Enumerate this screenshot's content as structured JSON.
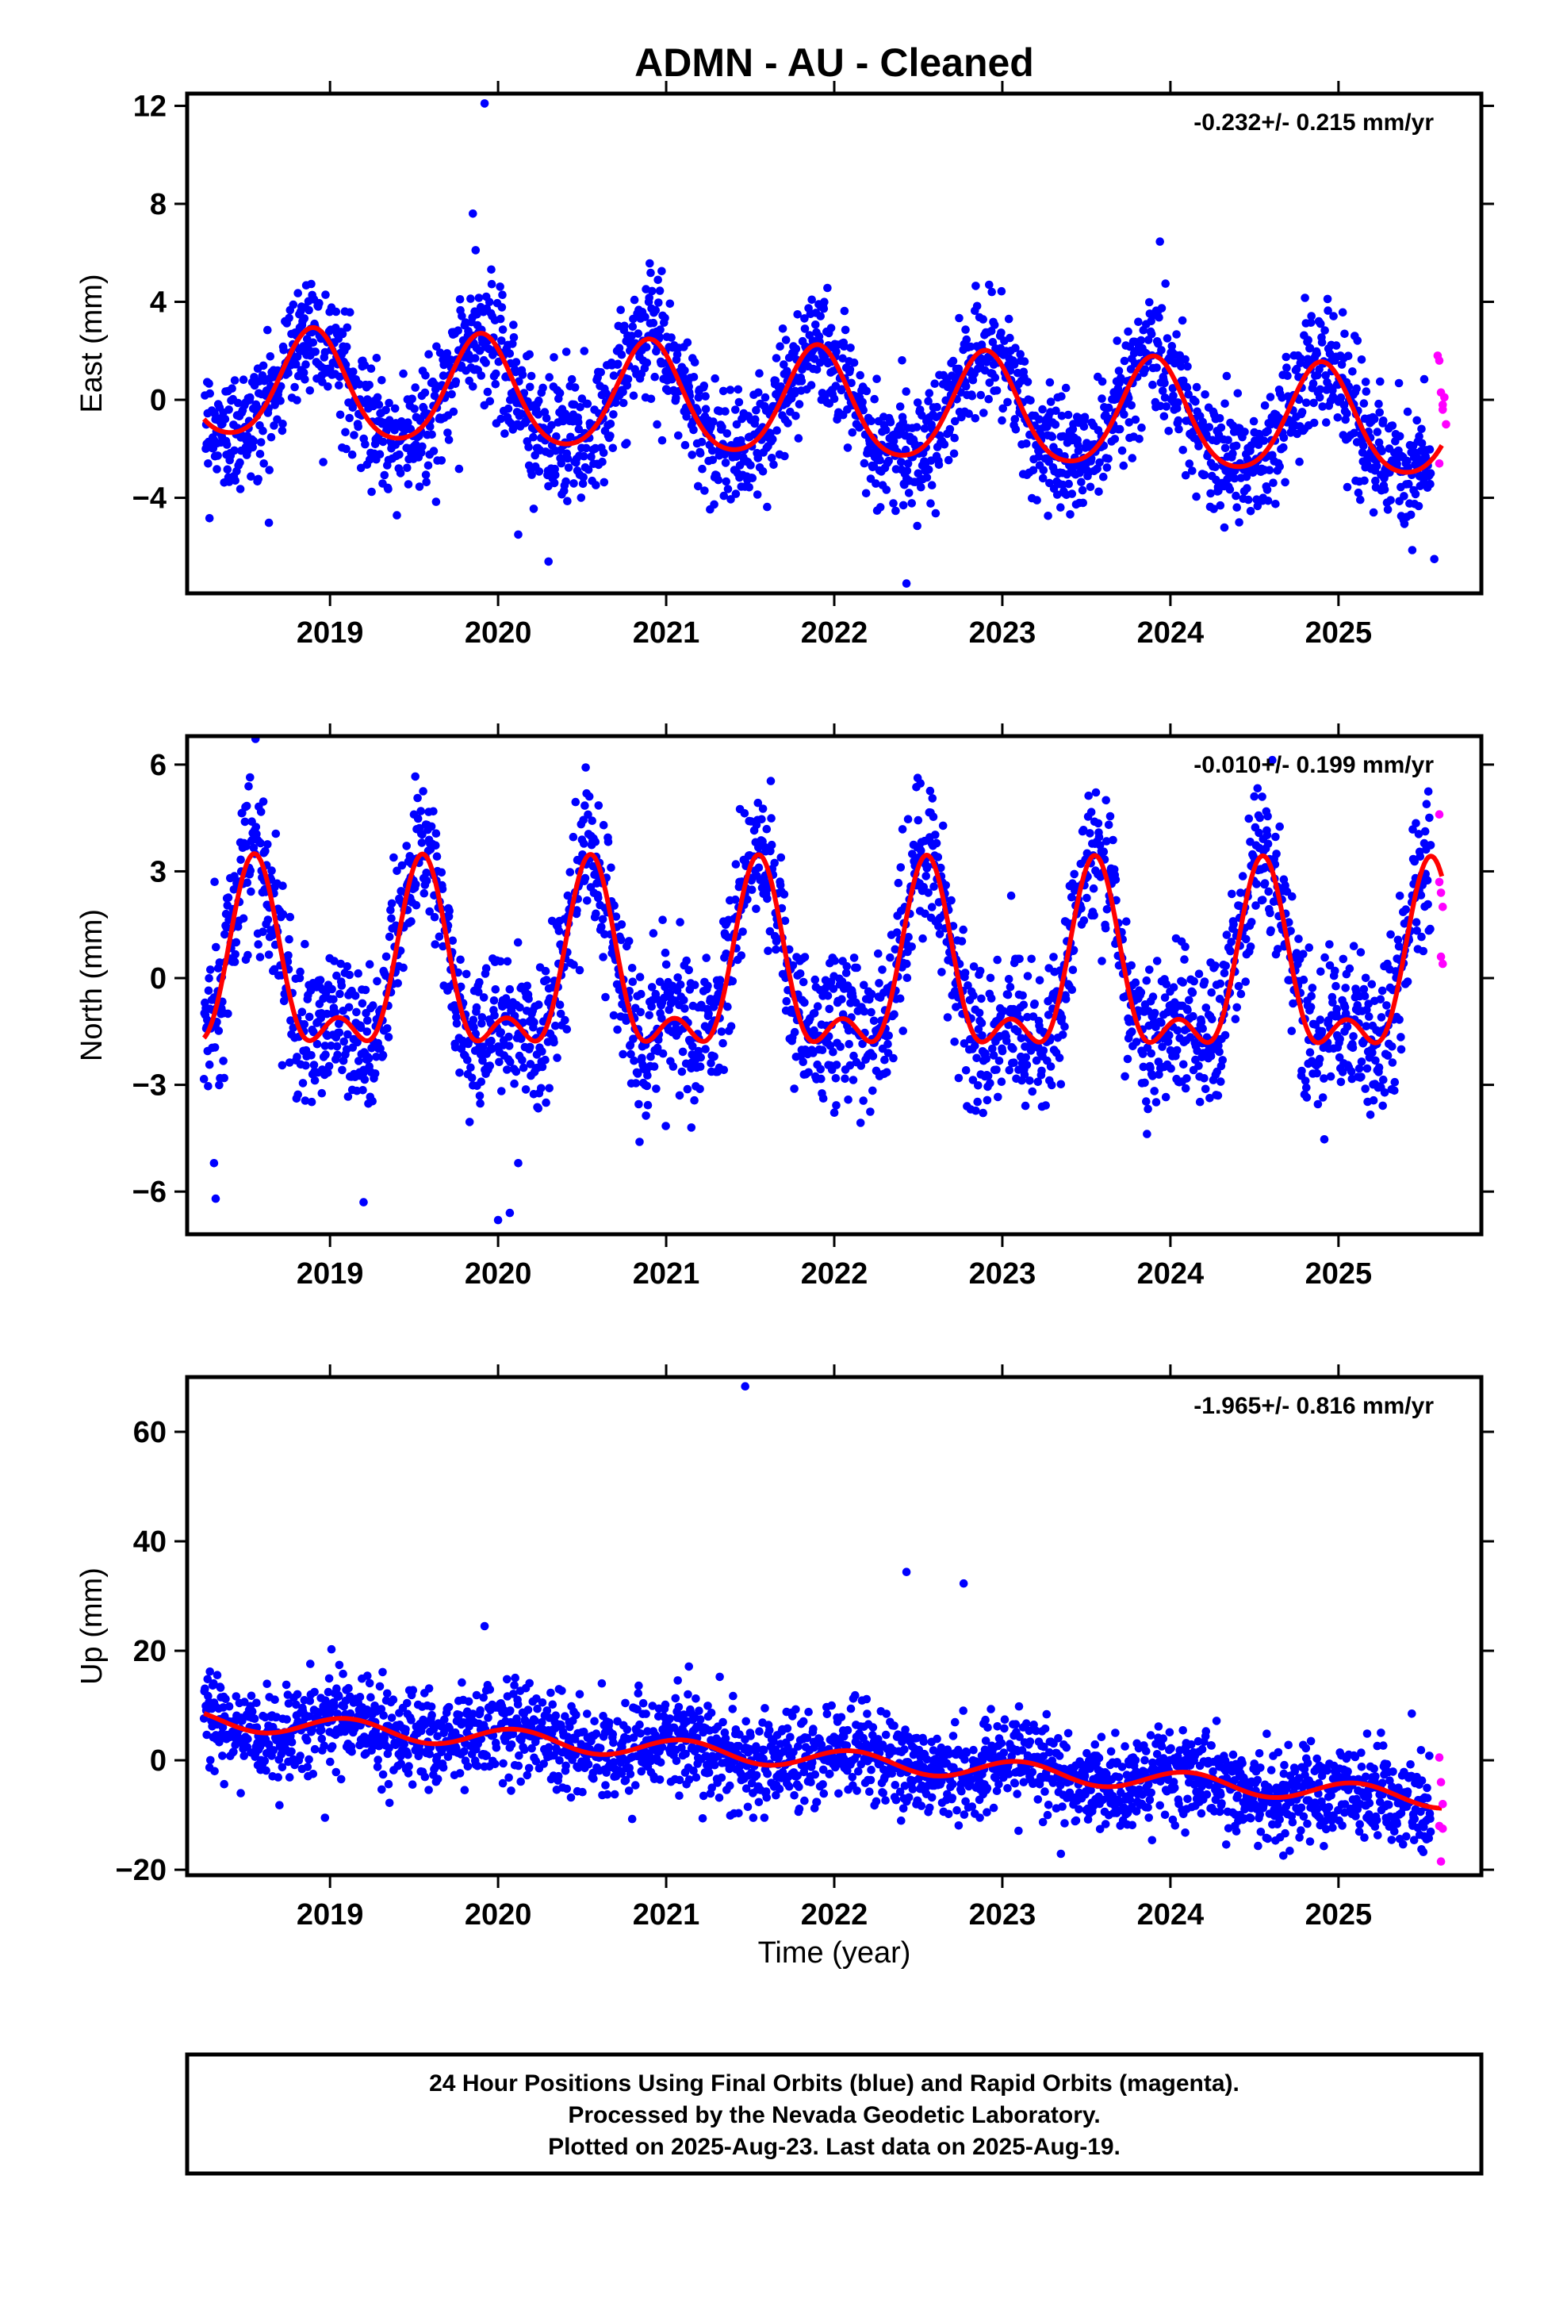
{
  "title": "ADMN  - AU - Cleaned",
  "colors": {
    "final_orbits": "#0000ff",
    "rapid_orbits": "#ff00ff",
    "model_fit": "#ff0000",
    "frame": "#000000"
  },
  "x_axis": {
    "label": "Time (year)",
    "range": [
      2018.15,
      2025.85
    ],
    "ticks": [
      2019,
      2020,
      2021,
      2022,
      2023,
      2024,
      2025
    ],
    "tick_labels": [
      "2019",
      "2020",
      "2021",
      "2022",
      "2023",
      "2024",
      "2025"
    ]
  },
  "chart_data": [
    {
      "type": "scatter",
      "id": "east",
      "ylabel": "East (mm)",
      "ylim": [
        -7.9,
        12.5
      ],
      "yticks": [
        -4,
        0,
        4,
        8,
        12
      ],
      "ytick_labels": [
        "−4",
        "0",
        "4",
        "8",
        "12"
      ],
      "rate": "-0.232+/- 0.215 mm/yr",
      "series": [
        {
          "kind": "final_orbits",
          "x_range": [
            2018.25,
            2025.55
          ],
          "seasonal": {
            "offset": 0.6,
            "trend": -0.232,
            "amp": 2.2,
            "peak": 0.9,
            "amp2": 0.3,
            "noise": 1.25
          }
        },
        {
          "kind": "rapid_orbits",
          "points": [
            [
              2025.59,
              1.8
            ],
            [
              2025.6,
              1.6
            ],
            [
              2025.61,
              0.3
            ],
            [
              2025.62,
              -0.2
            ],
            [
              2025.63,
              0.1
            ],
            [
              2025.64,
              -1.0
            ],
            [
              2025.6,
              -2.6
            ],
            [
              2025.62,
              -0.4
            ]
          ]
        },
        {
          "kind": "model_fit",
          "x_range": [
            2018.25,
            2025.62
          ]
        }
      ],
      "outliers": [
        [
          2019.92,
          12.1
        ],
        [
          2019.85,
          7.6
        ],
        [
          2020.12,
          -5.5
        ],
        [
          2020.3,
          -6.6
        ],
        [
          2022.43,
          -7.5
        ],
        [
          2025.57,
          -6.5
        ]
      ]
    },
    {
      "type": "scatter",
      "id": "north",
      "ylabel": "North (mm)",
      "ylim": [
        -7.2,
        6.8
      ],
      "yticks": [
        -6,
        -3,
        0,
        3,
        6
      ],
      "ytick_labels": [
        "−6",
        "−3",
        "0",
        "3",
        "6"
      ],
      "rate": "-0.010+/- 0.199 mm/yr",
      "series": [
        {
          "kind": "final_orbits",
          "x_range": [
            2018.25,
            2025.55
          ],
          "seasonal": {
            "offset": 0.0,
            "trend": -0.01,
            "amp": 2.3,
            "peak": 0.55,
            "amp2": 1.2,
            "noise": 1.05
          }
        },
        {
          "kind": "rapid_orbits",
          "points": [
            [
              2025.6,
              4.6
            ],
            [
              2025.61,
              2.4
            ],
            [
              2025.62,
              2.0
            ],
            [
              2025.61,
              0.6
            ],
            [
              2025.62,
              0.4
            ],
            [
              2025.6,
              2.7
            ]
          ]
        },
        {
          "kind": "model_fit",
          "x_range": [
            2018.25,
            2025.62
          ]
        }
      ],
      "outliers": [
        [
          2018.32,
          -6.2
        ],
        [
          2018.31,
          -5.2
        ],
        [
          2019.2,
          -6.3
        ],
        [
          2020.0,
          -6.8
        ],
        [
          2020.07,
          -6.6
        ],
        [
          2020.12,
          -5.2
        ],
        [
          2021.15,
          -4.2
        ]
      ]
    },
    {
      "type": "scatter",
      "id": "up",
      "ylabel": "Up (mm)",
      "ylim": [
        -21,
        70
      ],
      "yticks": [
        -20,
        0,
        20,
        40,
        60
      ],
      "ytick_labels": [
        "−20",
        "0",
        "20",
        "40",
        "60"
      ],
      "rate": "-1.965+/- 0.816 mm/yr",
      "series": [
        {
          "kind": "final_orbits",
          "x_range": [
            2018.25,
            2025.55
          ],
          "seasonal": {
            "offset": 7.5,
            "trend": -1.965,
            "amp": 1.8,
            "peak": 0.1,
            "amp2": 0.0,
            "noise": 4.3
          }
        },
        {
          "kind": "rapid_orbits",
          "points": [
            [
              2025.6,
              0.5
            ],
            [
              2025.61,
              -4.0
            ],
            [
              2025.62,
              -8.0
            ],
            [
              2025.6,
              -12.0
            ],
            [
              2025.62,
              -12.5
            ],
            [
              2025.61,
              -18.5
            ]
          ]
        },
        {
          "kind": "model_fit",
          "x_range": [
            2018.25,
            2025.62
          ]
        }
      ],
      "outliers": [
        [
          2021.47,
          68.3
        ],
        [
          2022.43,
          34.4
        ],
        [
          2022.77,
          32.3
        ],
        [
          2019.92,
          24.5
        ],
        [
          2018.97,
          -10.5
        ]
      ]
    }
  ],
  "footer": {
    "line1": "24 Hour Positions Using Final Orbits (blue) and Rapid Orbits (magenta).",
    "line2": "Processed by the Nevada Geodetic Laboratory.",
    "line3": "Plotted on 2025-Aug-23. Last data on 2025-Aug-19."
  }
}
